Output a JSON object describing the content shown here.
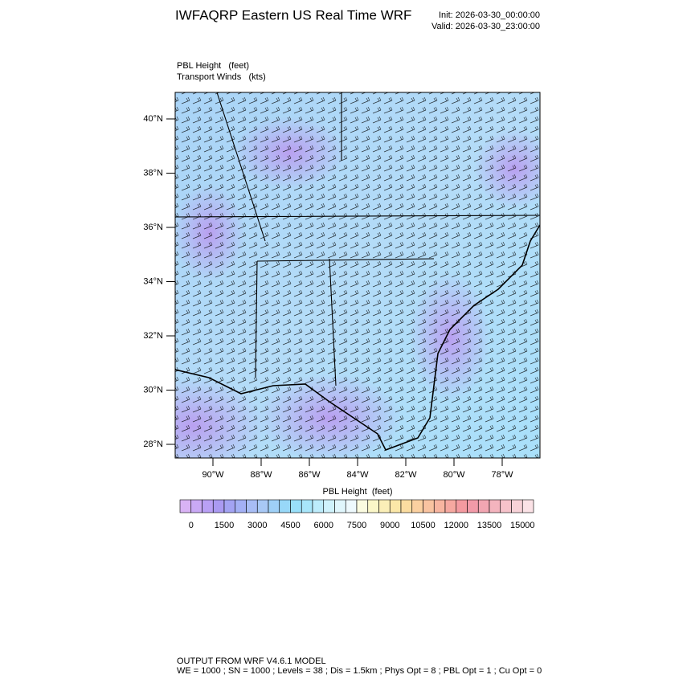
{
  "header": {
    "title": "IWFAQRP Eastern US Real Time WRF",
    "init": "Init: 2026-03-30_00:00:00",
    "valid": "Valid: 2026-03-30_23:00:00"
  },
  "map": {
    "field_label": "PBL Height   (feet)",
    "wind_label": "Transport Winds   (kts)",
    "lat_labels": [
      "40°N",
      "38°N",
      "36°N",
      "34°N",
      "32°N",
      "30°N",
      "28°N"
    ],
    "lon_labels": [
      "90°W",
      "88°W",
      "86°W",
      "84°W",
      "82°W",
      "80°W",
      "78°W"
    ]
  },
  "colorbar": {
    "title": "PBL Height  (feet)",
    "labels": [
      "0",
      "1500",
      "3000",
      "4500",
      "6000",
      "7500",
      "9000",
      "10500",
      "12000",
      "13500",
      "15000"
    ],
    "colors": [
      "#d9b3f5",
      "#c9a9f5",
      "#b9a0f5",
      "#aa9af2",
      "#a3a3f3",
      "#a3b0f5",
      "#a8bdf5",
      "#a8c8f5",
      "#9fd0f7",
      "#98d8f8",
      "#99e0fa",
      "#a8e6fa",
      "#bdecfb",
      "#cff2fc",
      "#e0f6fc",
      "#eef9fd",
      "#fbfbe0",
      "#fbf7c8",
      "#fbefb8",
      "#fbe7a8",
      "#fbdca0",
      "#fbd0a0",
      "#f9c3a0",
      "#f8b5a0",
      "#f6a8a0",
      "#f49aa0",
      "#f29aa8",
      "#f2a6b2",
      "#f4b4be",
      "#f6c2ca",
      "#f8d2d8",
      "#fbe2e6"
    ]
  },
  "footer": {
    "line1": "OUTPUT FROM WRF V4.6.1 MODEL",
    "line2": "WE = 1000 ; SN = 1000 ; Levels = 38 ; Dis = 1.5km ; Phys Opt = 8 ; PBL Opt = 1 ; Cu Opt = 0"
  }
}
